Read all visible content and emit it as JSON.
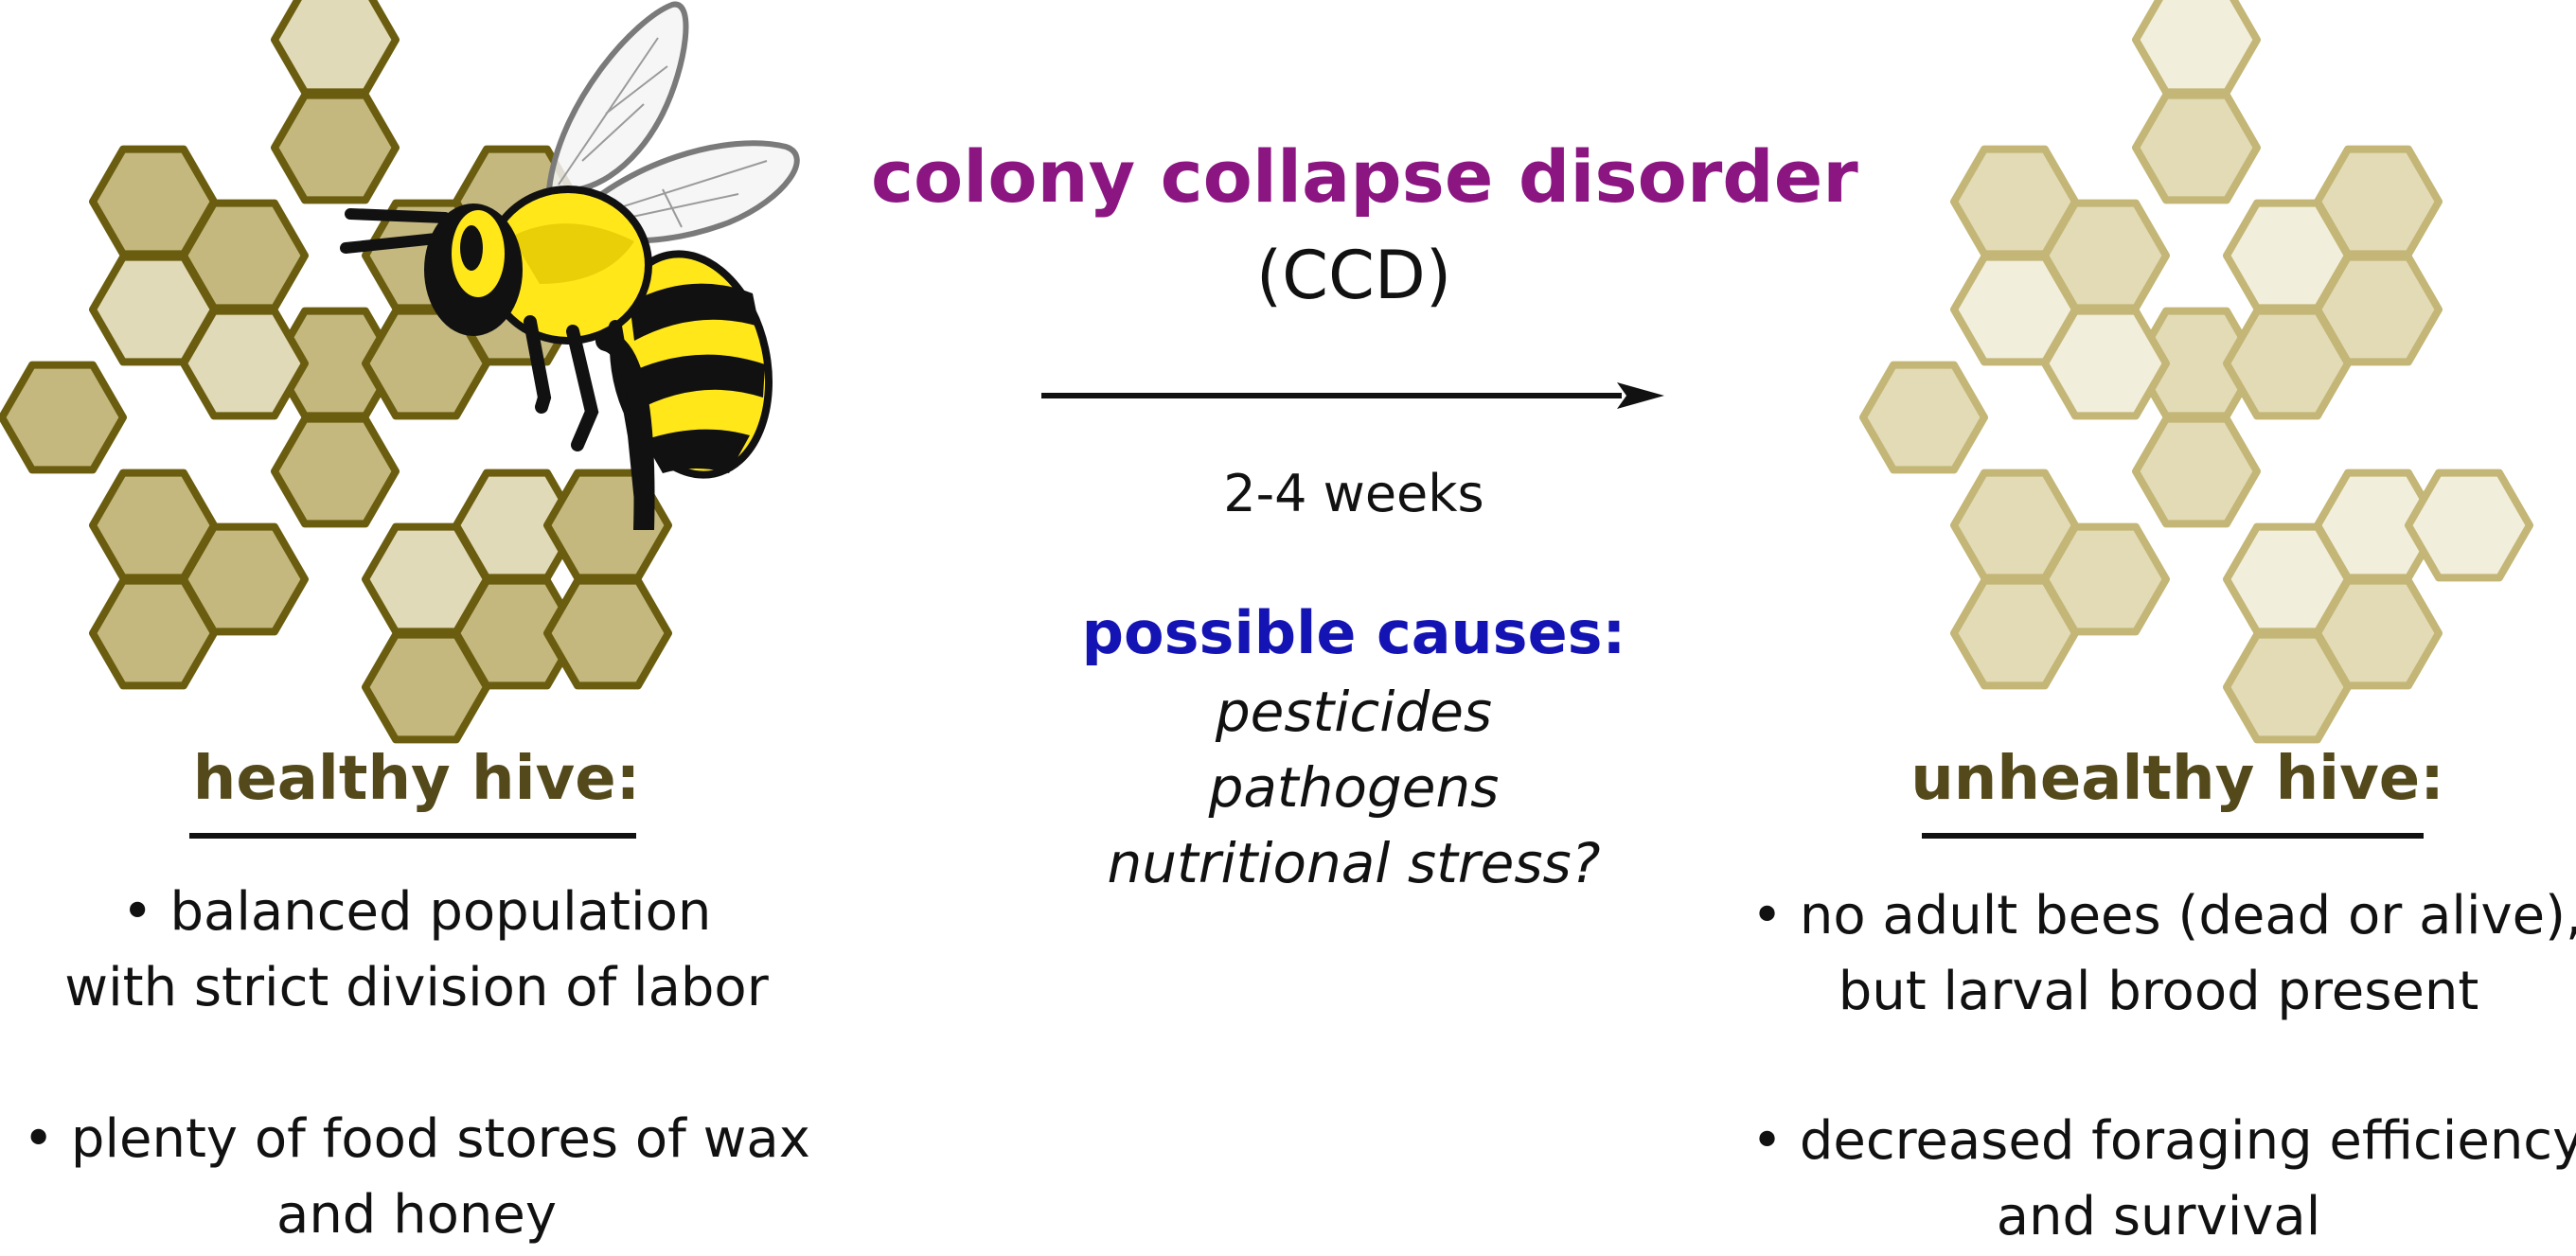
{
  "title": {
    "main": "colony collapse disorder",
    "abbreviation": "(CCD)",
    "color": "#8b1682"
  },
  "transition": {
    "duration": "2-4 weeks"
  },
  "causes": {
    "heading": "possible causes:",
    "heading_color": "#1414b4",
    "items": [
      "pesticides",
      "pathogens",
      "nutritional stress?"
    ]
  },
  "healthy_hive": {
    "heading": "healthy hive:",
    "heading_color": "#54491a",
    "bullets": [
      {
        "line1": "• balanced population",
        "line2": "with strict division of labor"
      },
      {
        "line1": "• plenty of food stores of wax",
        "line2": "and honey"
      }
    ],
    "cell_stroke": "#6b5d0f",
    "cell_fill_dark": "#c4b87e",
    "cell_fill_light": "#e0dab8"
  },
  "unhealthy_hive": {
    "heading": "unhealthy hive:",
    "heading_color": "#54491a",
    "bullets": [
      {
        "line1": "• no adult bees (dead or alive),",
        "line2": "but larval brood present"
      },
      {
        "line1": "• decreased foraging efficiency",
        "line2": "and survival"
      }
    ],
    "cell_stroke": "#c3b676",
    "cell_fill_dark": "#e2dbb6",
    "cell_fill_light": "#f1eedb"
  },
  "icons": {
    "bee": "bee-icon",
    "arrow": "arrow-right-icon",
    "comb": "honeycomb-icon"
  }
}
